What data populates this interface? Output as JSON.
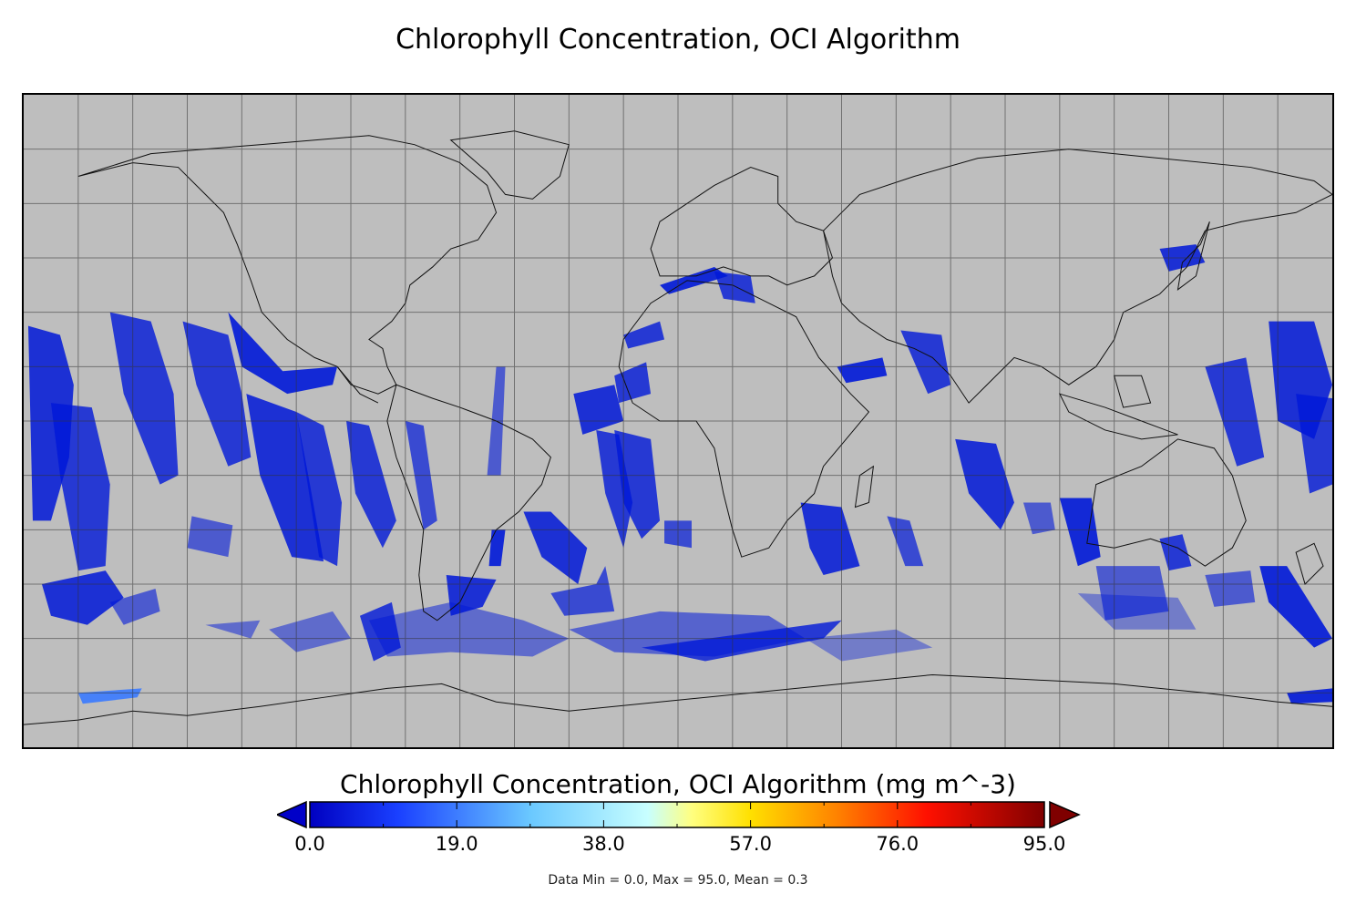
{
  "title": "Chlorophyll Concentration, OCI Algorithm",
  "colorbar": {
    "label": "Chlorophyll Concentration, OCI Algorithm (mg m^-3)",
    "min": 0.0,
    "max": 95.0,
    "ticks": [
      "0.0",
      "19.0",
      "38.0",
      "57.0",
      "76.0",
      "95.0"
    ],
    "under_color": "#0000c8",
    "over_color": "#7f0000",
    "stops": [
      {
        "pos": 0.0,
        "color": "#0000c0"
      },
      {
        "pos": 0.12,
        "color": "#1a40ff"
      },
      {
        "pos": 0.3,
        "color": "#6ac8ff"
      },
      {
        "pos": 0.46,
        "color": "#c8ffff"
      },
      {
        "pos": 0.52,
        "color": "#ffff80"
      },
      {
        "pos": 0.6,
        "color": "#ffe000"
      },
      {
        "pos": 0.72,
        "color": "#ff8000"
      },
      {
        "pos": 0.84,
        "color": "#ff1000"
      },
      {
        "pos": 1.0,
        "color": "#800000"
      }
    ]
  },
  "stats": "Data Min = 0.0, Max = 95.0, Mean = 0.3",
  "map": {
    "projection": "equirectangular",
    "extent": {
      "lon": [
        -180,
        180
      ],
      "lat": [
        -90,
        90
      ]
    },
    "graticule_deg": 15,
    "land_color": "#bebebe",
    "data_color": "#0010d0"
  }
}
